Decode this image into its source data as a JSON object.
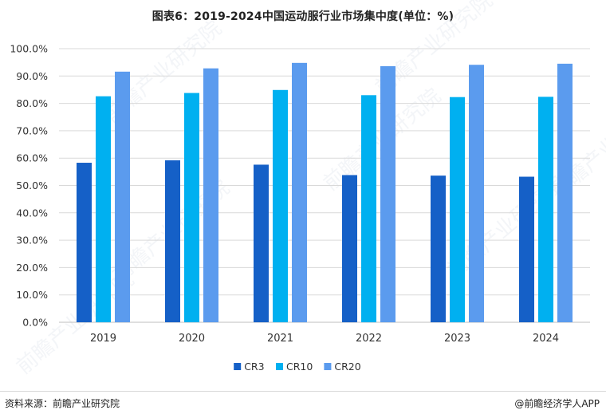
{
  "page": {
    "source_text": "资料来源：前瞻产业研究院",
    "brand_text": "@前瞻经济学人APP",
    "watermark_text": "前瞻产业研究院"
  },
  "colors": {
    "cr3": "#1560c7",
    "cr10": "#00b0f0",
    "cr20": "#5b9bee",
    "grid": "#d9d9d9",
    "axis_text": "#333333"
  },
  "chart_data": {
    "type": "bar",
    "title": "图表6：2019-2024中国运动服行业市场集中度(单位：%)",
    "categories": [
      "2019",
      "2020",
      "2021",
      "2022",
      "2023",
      "2024"
    ],
    "series": [
      {
        "name": "CR3",
        "values": [
          58.3,
          59.2,
          57.6,
          53.8,
          53.6,
          53.2
        ]
      },
      {
        "name": "CR10",
        "values": [
          82.6,
          83.8,
          84.9,
          83.0,
          82.3,
          82.4
        ]
      },
      {
        "name": "CR20",
        "values": [
          91.6,
          92.8,
          94.8,
          93.6,
          94.1,
          94.5
        ]
      }
    ],
    "xlabel": "",
    "ylabel": "",
    "ylim": [
      0,
      100
    ],
    "yticks": [
      "0.0%",
      "10.0%",
      "20.0%",
      "30.0%",
      "40.0%",
      "50.0%",
      "60.0%",
      "70.0%",
      "80.0%",
      "90.0%",
      "100.0%"
    ],
    "grid": true,
    "legend_position": "bottom-center"
  }
}
